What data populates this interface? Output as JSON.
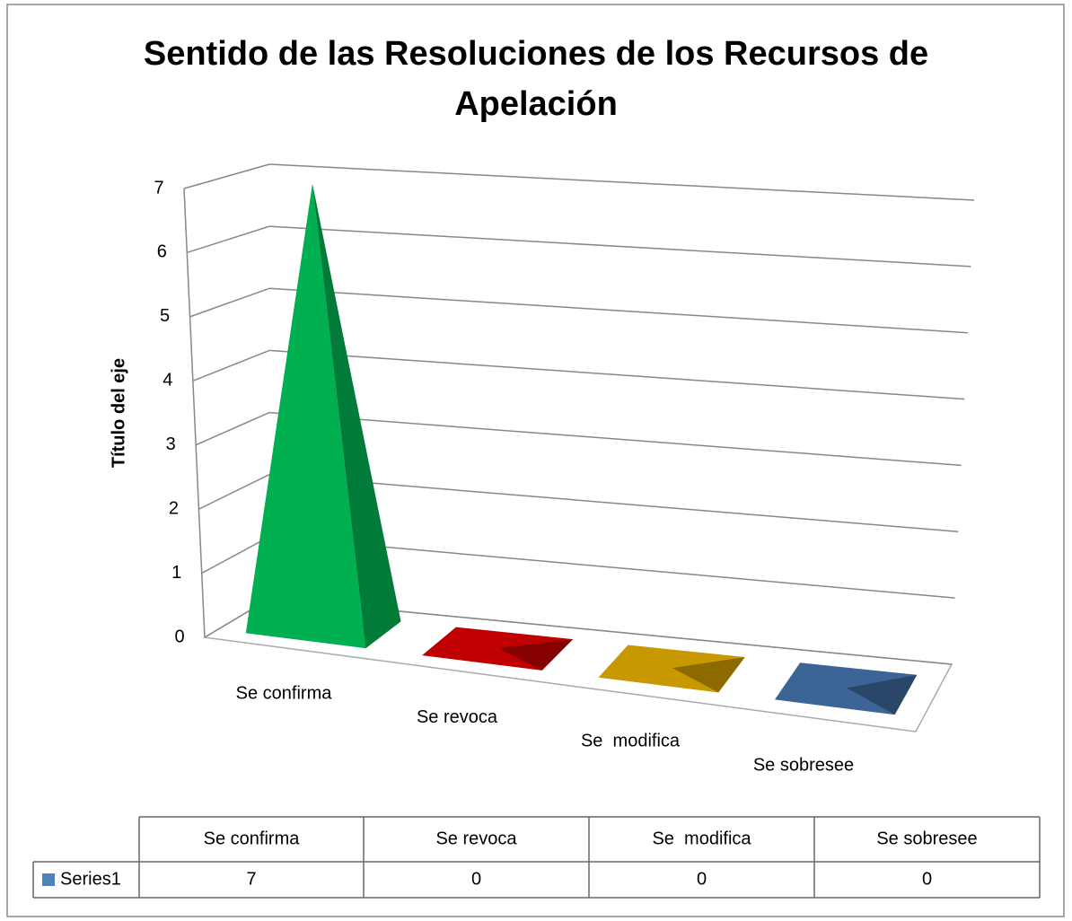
{
  "chart_data": {
    "type": "pyramid3d",
    "title": "Sentido de las Resoluciones de los Recursos de Apelación",
    "y_label": "Título del eje",
    "categories": [
      "Se confirma",
      "Se revoca",
      "Se  modifica",
      "Se sobresee"
    ],
    "series": [
      {
        "name": "Series1",
        "color": "#4f81bd",
        "values": [
          7,
          0,
          0,
          0
        ]
      }
    ],
    "colors": [
      "#00b050",
      "#c00000",
      "#c89800",
      "#3c6496"
    ],
    "ylim": [
      0,
      7
    ],
    "yticks": [
      0,
      1,
      2,
      3,
      4,
      5,
      6,
      7
    ],
    "grid": true,
    "data_table": true
  }
}
